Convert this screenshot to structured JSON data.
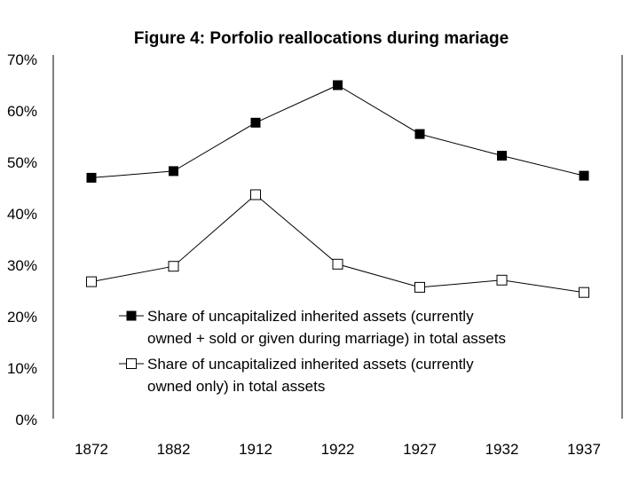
{
  "chart_data": {
    "type": "line",
    "title": "Figure 4: Porfolio reallocations during mariage",
    "xlabel": "",
    "ylabel": "",
    "categories": [
      "1872",
      "1882",
      "1912",
      "1922",
      "1927",
      "1932",
      "1937"
    ],
    "ylim": [
      0,
      0.7
    ],
    "y_tick_labels": [
      "0%",
      "10%",
      "20%",
      "30%",
      "40%",
      "50%",
      "60%",
      "70%"
    ],
    "grid": false,
    "legend_position": "lower-center",
    "series": [
      {
        "name": "Share of uncapitalized inherited assets (currently owned + sold or given during marriage) in total assets",
        "legend_lines": [
          "Share of uncapitalized inherited assets (currently",
          "owned + sold or given during marriage) in total assets"
        ],
        "marker": "filled-square",
        "values": [
          0.47,
          0.483,
          0.577,
          0.65,
          0.555,
          0.513,
          0.474
        ]
      },
      {
        "name": "Share of uncapitalized inherited assets (currently owned only) in total assets",
        "legend_lines": [
          "Share of uncapitalized inherited assets (currently",
          "owned only) in total assets"
        ],
        "marker": "open-square",
        "values": [
          0.268,
          0.298,
          0.437,
          0.302,
          0.257,
          0.271,
          0.247
        ]
      }
    ]
  }
}
